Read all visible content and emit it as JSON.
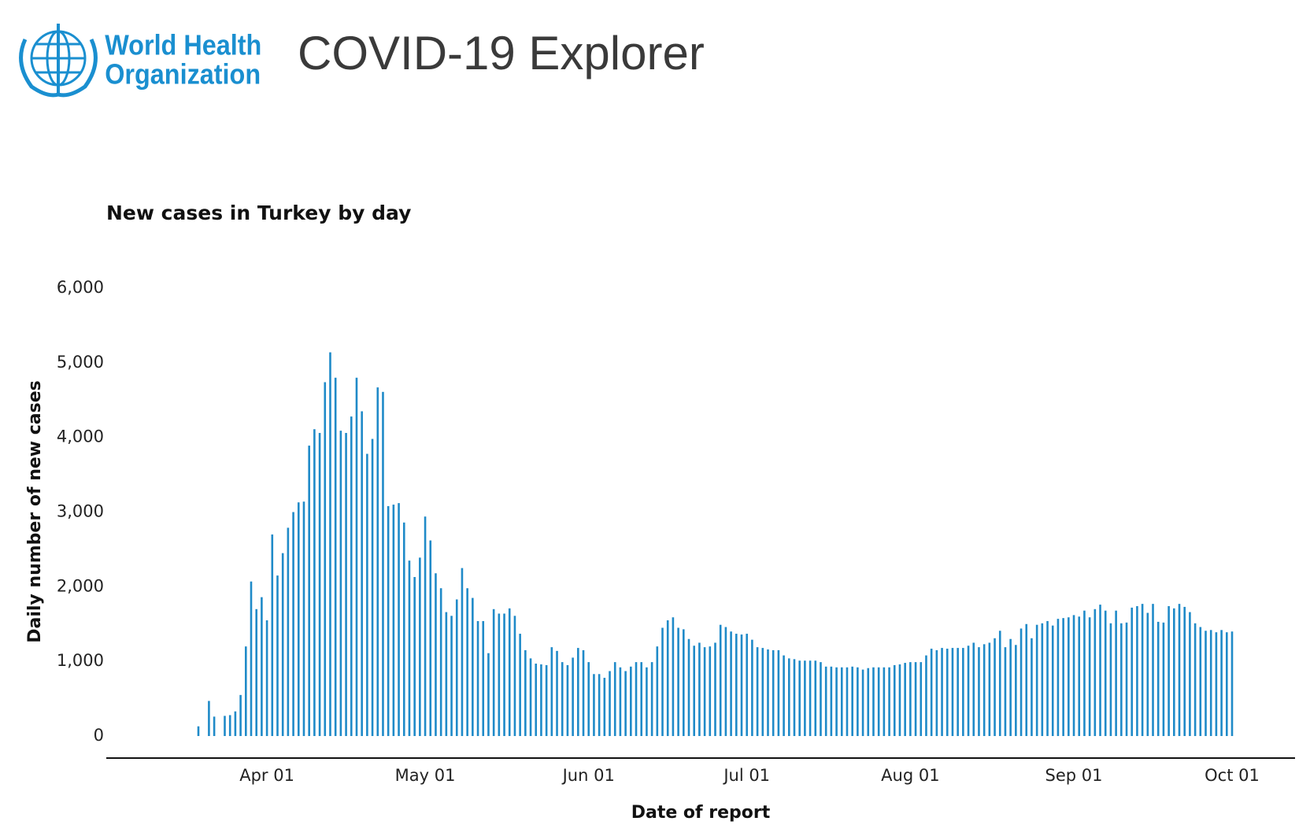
{
  "header": {
    "logo_lines": [
      "World Health",
      "Organization"
    ],
    "title": "COVID-19 Explorer"
  },
  "chart_data": {
    "type": "bar",
    "title": "New cases in Turkey by day",
    "xlabel": "Date of report",
    "ylabel": "Daily number of new cases",
    "color": "#1f8ac8",
    "x": [
      "Mar 19",
      "Mar 20",
      "Mar 21",
      "Mar 22",
      "Mar 23",
      "Mar 24",
      "Mar 25",
      "Mar 26",
      "Mar 27",
      "Mar 28",
      "Mar 29",
      "Mar 30",
      "Mar 31",
      "Apr 01",
      "Apr 02",
      "Apr 03",
      "Apr 04",
      "Apr 05",
      "Apr 06",
      "Apr 07",
      "Apr 08",
      "Apr 09",
      "Apr 10",
      "Apr 11",
      "Apr 12",
      "Apr 13",
      "Apr 14",
      "Apr 15",
      "Apr 16",
      "Apr 17",
      "Apr 18",
      "Apr 19",
      "Apr 20",
      "Apr 21",
      "Apr 22",
      "Apr 23",
      "Apr 24",
      "Apr 25",
      "Apr 26",
      "Apr 27",
      "Apr 28",
      "Apr 29",
      "Apr 30",
      "May 01",
      "May 02",
      "May 03",
      "May 04",
      "May 05",
      "May 06",
      "May 07",
      "May 08",
      "May 09",
      "May 10",
      "May 11",
      "May 12",
      "May 13",
      "May 14",
      "May 15",
      "May 16",
      "May 17",
      "May 18",
      "May 19",
      "May 20",
      "May 21",
      "May 22",
      "May 23",
      "May 24",
      "May 25",
      "May 26",
      "May 27",
      "May 28",
      "May 29",
      "May 30",
      "May 31",
      "Jun 01",
      "Jun 02",
      "Jun 03",
      "Jun 04",
      "Jun 05",
      "Jun 06",
      "Jun 07",
      "Jun 08",
      "Jun 09",
      "Jun 10",
      "Jun 11",
      "Jun 12",
      "Jun 13",
      "Jun 14",
      "Jun 15",
      "Jun 16",
      "Jun 17",
      "Jun 18",
      "Jun 19",
      "Jun 20",
      "Jun 21",
      "Jun 22",
      "Jun 23",
      "Jun 24",
      "Jun 25",
      "Jun 26",
      "Jun 27",
      "Jun 28",
      "Jun 29",
      "Jun 30",
      "Jul 01",
      "Jul 02",
      "Jul 03",
      "Jul 04",
      "Jul 05",
      "Jul 06",
      "Jul 07",
      "Jul 08",
      "Jul 09",
      "Jul 10",
      "Jul 11",
      "Jul 12",
      "Jul 13",
      "Jul 14",
      "Jul 15",
      "Jul 16",
      "Jul 17",
      "Jul 18",
      "Jul 19",
      "Jul 20",
      "Jul 21",
      "Jul 22",
      "Jul 23",
      "Jul 24",
      "Jul 25",
      "Jul 26",
      "Jul 27",
      "Jul 28",
      "Jul 29",
      "Jul 30",
      "Jul 31",
      "Aug 01",
      "Aug 02",
      "Aug 03",
      "Aug 04",
      "Aug 05",
      "Aug 06",
      "Aug 07",
      "Aug 08",
      "Aug 09",
      "Aug 10",
      "Aug 11",
      "Aug 12",
      "Aug 13",
      "Aug 14",
      "Aug 15",
      "Aug 16",
      "Aug 17",
      "Aug 18",
      "Aug 19",
      "Aug 20",
      "Aug 21",
      "Aug 22",
      "Aug 23",
      "Aug 24",
      "Aug 25",
      "Aug 26",
      "Aug 27",
      "Aug 28",
      "Aug 29",
      "Aug 30",
      "Aug 31",
      "Sep 01",
      "Sep 02",
      "Sep 03",
      "Sep 04",
      "Sep 05",
      "Sep 06",
      "Sep 07",
      "Sep 08",
      "Sep 09",
      "Sep 10",
      "Sep 11",
      "Sep 12",
      "Sep 13",
      "Sep 14",
      "Sep 15",
      "Sep 16",
      "Sep 17",
      "Sep 18",
      "Sep 19",
      "Sep 20",
      "Sep 21",
      "Sep 22",
      "Sep 23",
      "Sep 24",
      "Sep 25",
      "Sep 26",
      "Sep 27",
      "Sep 28",
      "Sep 29",
      "Sep 30",
      "Oct 01"
    ],
    "values": [
      130,
      null,
      470,
      260,
      null,
      270,
      280,
      330,
      550,
      1200,
      2070,
      1700,
      1860,
      1550,
      2700,
      2150,
      2450,
      2790,
      3000,
      3130,
      3140,
      3890,
      4110,
      4060,
      4740,
      5140,
      4800,
      4090,
      4060,
      4280,
      4800,
      4350,
      3780,
      3980,
      4670,
      4610,
      3080,
      3100,
      3120,
      2860,
      2350,
      2130,
      2390,
      2940,
      2620,
      2180,
      1980,
      1660,
      1610,
      1830,
      2250,
      1980,
      1850,
      1540,
      1540,
      1110,
      1700,
      1640,
      1640,
      1710,
      1610,
      1370,
      1150,
      1040,
      970,
      960,
      950,
      1190,
      1140,
      990,
      950,
      1050,
      1180,
      1150,
      990,
      830,
      830,
      780,
      870,
      990,
      920,
      870,
      930,
      990,
      990,
      920,
      990,
      1200,
      1450,
      1550,
      1590,
      1450,
      1430,
      1300,
      1210,
      1250,
      1190,
      1200,
      1250,
      1490,
      1460,
      1400,
      1370,
      1360,
      1370,
      1290,
      1190,
      1180,
      1160,
      1150,
      1150,
      1080,
      1040,
      1030,
      1010,
      1010,
      1010,
      1010,
      990,
      930,
      930,
      920,
      920,
      920,
      930,
      920,
      890,
      910,
      920,
      920,
      920,
      920,
      950,
      960,
      980,
      990,
      990,
      990,
      1080,
      1170,
      1150,
      1180,
      1170,
      1180,
      1180,
      1180,
      1210,
      1250,
      1190,
      1230,
      1250,
      1310,
      1410,
      1190,
      1300,
      1220,
      1440,
      1500,
      1310,
      1490,
      1510,
      1540,
      1480,
      1570,
      1580,
      1590,
      1620,
      1600,
      1680,
      1590,
      1700,
      1760,
      1680,
      1510,
      1680,
      1510,
      1520,
      1720,
      1740,
      1770,
      1650,
      1770,
      1530,
      1520,
      1740,
      1710,
      1770,
      1730,
      1660,
      1510,
      1460,
      1410,
      1420,
      1390,
      1420,
      1390,
      1400
    ],
    "xticks": [
      "Apr 01",
      "May 01",
      "Jun 01",
      "Jul 01",
      "Aug 01",
      "Sep 01",
      "Oct 01"
    ],
    "ylim": [
      0,
      6000
    ],
    "yticks": [
      0,
      {
        "value": 1000,
        "label": "1,000"
      },
      {
        "value": 2000,
        "label": "2,000"
      },
      {
        "value": 3000,
        "label": "3,000"
      },
      {
        "value": 4000,
        "label": "4,000"
      },
      {
        "value": 5000,
        "label": "5,000"
      },
      {
        "value": 6000,
        "label": "6,000"
      }
    ],
    "grid": false
  }
}
